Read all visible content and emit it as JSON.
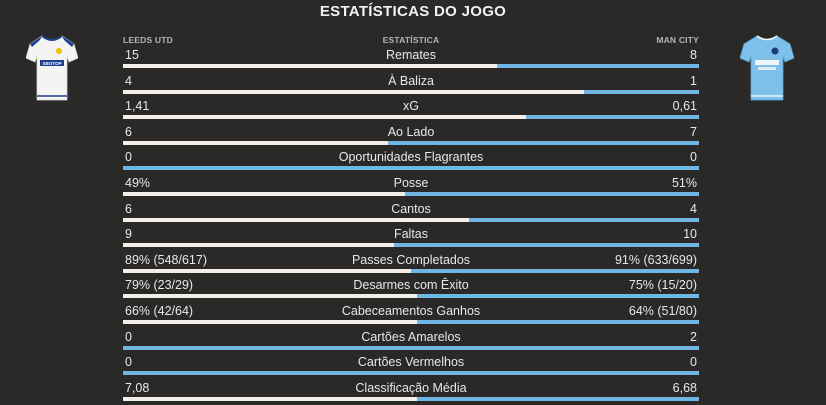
{
  "title": "ESTATÍSTICAS DO JOGO",
  "headers": {
    "home": "LEEDS UTD",
    "center": "ESTATÍSTICA",
    "away": "MAN CITY"
  },
  "colors": {
    "home_bar": "#f2efe8",
    "away_bar": "#6fb8e6",
    "background": "#2a2928"
  },
  "teams": {
    "home": {
      "name": "LEEDS UTD",
      "kit_icon": "leeds-home-kit-icon"
    },
    "away": {
      "name": "MAN CITY",
      "kit_icon": "man-city-home-kit-icon"
    }
  },
  "stats": [
    {
      "label": "Remates",
      "home": "15",
      "away": "8",
      "home_share": 0.65
    },
    {
      "label": "À Baliza",
      "home": "4",
      "away": "1",
      "home_share": 0.8
    },
    {
      "label": "xG",
      "home": "1,41",
      "away": "0,61",
      "home_share": 0.7
    },
    {
      "label": "Ao Lado",
      "home": "6",
      "away": "7",
      "home_share": 0.46
    },
    {
      "label": "Oportunidades Flagrantes",
      "home": "0",
      "away": "0",
      "home_share": 0
    },
    {
      "label": "Posse",
      "home": "49%",
      "away": "51%",
      "home_share": 0.49
    },
    {
      "label": "Cantos",
      "home": "6",
      "away": "4",
      "home_share": 0.6
    },
    {
      "label": "Faltas",
      "home": "9",
      "away": "10",
      "home_share": 0.47
    },
    {
      "label": "Passes Completados",
      "home": "89% (548/617)",
      "away": "91% (633/699)",
      "home_share": 0.5
    },
    {
      "label": "Desarmes com Êxito",
      "home": "79% (23/29)",
      "away": "75% (15/20)",
      "home_share": 0.51
    },
    {
      "label": "Cabeceamentos Ganhos",
      "home": "66% (42/64)",
      "away": "64% (51/80)",
      "home_share": 0.51
    },
    {
      "label": "Cartões Amarelos",
      "home": "0",
      "away": "2",
      "home_share": 0
    },
    {
      "label": "Cartões Vermelhos",
      "home": "0",
      "away": "0",
      "home_share": 0
    },
    {
      "label": "Classificação Média",
      "home": "7,08",
      "away": "6,68",
      "home_share": 0.51
    }
  ]
}
